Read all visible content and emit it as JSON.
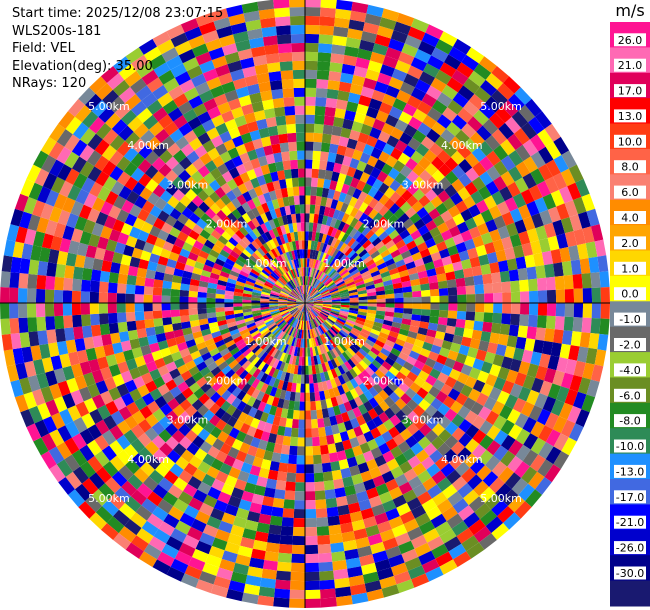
{
  "header": {
    "start_time": "Start time: 2025/12/08 23:07:15",
    "instrument": "WLS200s-181",
    "field": "Field: VEL",
    "elevation": "Elevation(deg): 35.00",
    "nrays": "NRays: 120"
  },
  "colorbar": {
    "unit": "m/s",
    "ticks": [
      "26.0",
      "21.0",
      "17.0",
      "13.0",
      "10.0",
      "8.0",
      "6.0",
      "4.0",
      "2.0",
      "1.0",
      "0.0",
      "-1.0",
      "-2.0",
      "-4.0",
      "-6.0",
      "-8.0",
      "-10.0",
      "-13.0",
      "-17.0",
      "-21.0",
      "-26.0",
      "-30.0"
    ],
    "colors": [
      "#ff1493",
      "#ff69b4",
      "#e0005a",
      "#ff0000",
      "#ff3c14",
      "#ff6347",
      "#fa8072",
      "#ff8c00",
      "#ffa500",
      "#ffd700",
      "#ffff00",
      "#778899",
      "#696969",
      "#9acd32",
      "#6b8e23",
      "#228b22",
      "#2e8b57",
      "#1e90ff",
      "#4169e1",
      "#0000ff",
      "#0000cd",
      "#00008b",
      "#191970"
    ]
  },
  "chart_data": {
    "type": "heatmap",
    "projection": "polar PPI scan",
    "field": "VEL",
    "nrays": 120,
    "unit": "m/s",
    "vmin": -30.0,
    "vmax": 26.0,
    "range_unit": "km",
    "range_rings": [
      {
        "label": "1.00km",
        "value": 1.0
      },
      {
        "label": "2.00km",
        "value": 2.0
      },
      {
        "label": "3.00km",
        "value": 3.0
      },
      {
        "label": "4.00km",
        "value": 4.0
      },
      {
        "label": "5.00km",
        "value": 5.0
      }
    ],
    "max_range_km": 5.5
  }
}
